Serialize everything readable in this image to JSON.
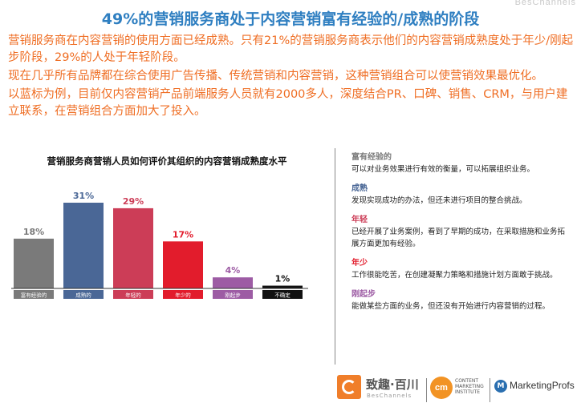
{
  "watermark": "BesChannels",
  "headline": "49%的营销服务商处于内容营销富有经验的/成熟的阶段",
  "paragraphs": [
    "营销服务商在内容营销的使用方面已经成熟。只有21%的营销服务商表示他们的内容营销成熟度处于年少/刚起步阶段，29%的人处于年轻阶段。",
    "现在几乎所有品牌都在综合使用广告传播、传统营销和内容营销，这种营销组合可以使营销效果最优化。",
    "以蓝标为例，目前仅内容营销产品前端服务人员就有2000多人，深度结合PR、口碑、销售、CRM，与用户建立联系，在营销组合方面加大了投入。"
  ],
  "chart_data": {
    "type": "bar",
    "title": "营销服务商营销人员如何评价其组织的内容营销成熟度水平",
    "categories": [
      "富有经验的",
      "成熟的",
      "年轻的",
      "年少的",
      "刚起步",
      "不确定"
    ],
    "values": [
      18,
      31,
      29,
      17,
      4,
      1
    ],
    "value_labels": [
      "18%",
      "31%",
      "29%",
      "17%",
      "4%",
      "1%"
    ],
    "colors": [
      "#7a7a7a",
      "#4a6796",
      "#cc3d57",
      "#e21c2c",
      "#9d5ca4",
      "#111111"
    ],
    "label_colors": [
      "#7a7a7a",
      "#4a6796",
      "#cc3d57",
      "#e21c2c",
      "#9d5ca4",
      "#111111"
    ],
    "ylim": [
      0,
      31
    ],
    "grid": false,
    "legend": "none"
  },
  "legend": [
    {
      "label": "富有经验的",
      "color": "#7a7a7a",
      "desc": "可以对业务效果进行有效的衡量，可以拓展组织业务。"
    },
    {
      "label": "成熟",
      "color": "#4a6796",
      "desc": "发现实现成功的办法，但还未进行项目的整合挑战。"
    },
    {
      "label": "年轻",
      "color": "#cc3d57",
      "desc": "已经开展了业务案例，看到了早期的成功，在采取措施和业务拓展方面更加有经验。"
    },
    {
      "label": "年少",
      "color": "#e21c2c",
      "desc": "工作很能吃苦，在创建凝聚力策略和措施计划方面敢于挑战。"
    },
    {
      "label": "刚起步",
      "color": "#9d5ca4",
      "desc": "能做某些方面的业务，但还没有开始进行内容营销的过程。"
    }
  ],
  "logos": {
    "zq_name": "致趣·百川",
    "zq_sub": "BesChannels",
    "cmi_mark": "cm",
    "cmi_text": "CONTENT MARKETING INSTITUTE",
    "mp_mark": "M",
    "mp_name": "MarketingProfs"
  }
}
